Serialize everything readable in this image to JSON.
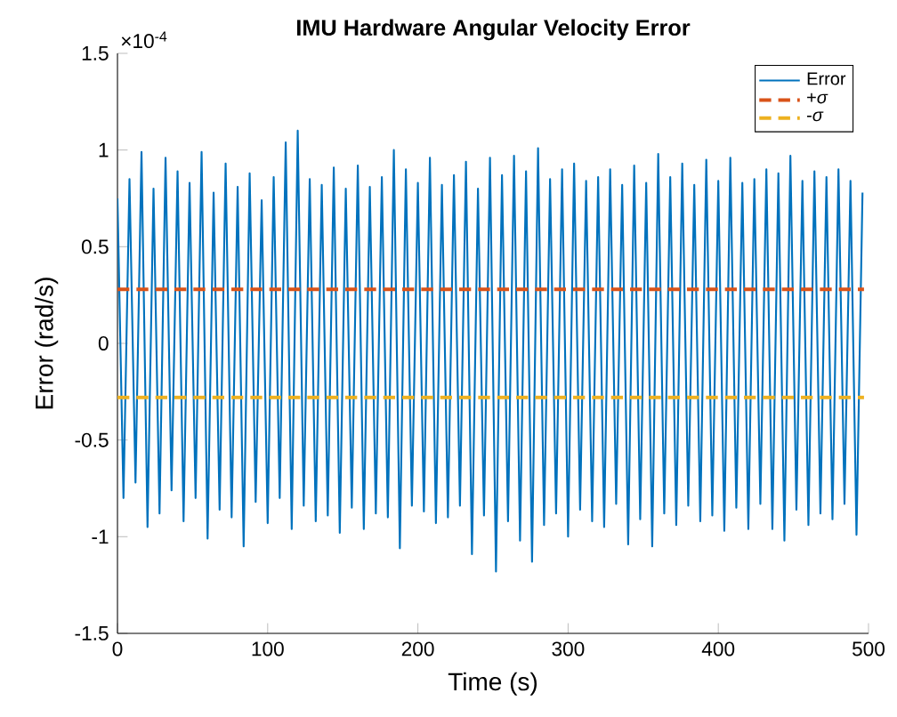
{
  "chart_data": {
    "type": "line",
    "title": "IMU Hardware Angular Velocity Error",
    "xlabel": "Time (s)",
    "ylabel": "Error (rad/s)",
    "annotations": [
      "×10$^{-4}$"
    ],
    "xlim": [
      0,
      500
    ],
    "xticks": [
      0,
      100,
      200,
      300,
      400,
      500
    ],
    "ylim": [
      -1.5,
      1.5
    ],
    "yticks": [
      -1.5,
      -1,
      -0.5,
      0,
      0.5,
      1,
      1.5
    ],
    "legend": "top right",
    "marker": "none",
    "series": [
      {
        "name": "Error",
        "color": "#0072bd",
        "line_style": "solid",
        "x": [
          0,
          4,
          8,
          12,
          16,
          20,
          24,
          28,
          32,
          36,
          40,
          44,
          48,
          52,
          56,
          60,
          64,
          68,
          72,
          76,
          80,
          84,
          88,
          92,
          96,
          100,
          104,
          108,
          112,
          116,
          120,
          124,
          128,
          132,
          136,
          140,
          144,
          148,
          152,
          156,
          160,
          164,
          168,
          172,
          176,
          180,
          184,
          188,
          192,
          196,
          200,
          204,
          208,
          212,
          216,
          220,
          224,
          228,
          232,
          236,
          240,
          244,
          248,
          252,
          256,
          260,
          264,
          268,
          272,
          276,
          280,
          284,
          288,
          292,
          296,
          300,
          304,
          308,
          312,
          316,
          320,
          324,
          328,
          332,
          336,
          340,
          344,
          348,
          352,
          356,
          360,
          364,
          368,
          372,
          376,
          380,
          384,
          388,
          392,
          396,
          400,
          404,
          408,
          412,
          416,
          420,
          424,
          428,
          432,
          436,
          440,
          444,
          448,
          452,
          456,
          460,
          464,
          468,
          472,
          476,
          480,
          484,
          488,
          492,
          496
        ],
        "values": [
          0.75,
          -0.8,
          0.85,
          -0.72,
          0.99,
          -0.95,
          0.8,
          -0.88,
          0.96,
          -0.76,
          0.89,
          -0.92,
          0.83,
          -0.8,
          0.99,
          -1.01,
          0.78,
          -0.86,
          0.93,
          -0.9,
          0.81,
          -1.05,
          0.88,
          -0.82,
          0.74,
          -0.93,
          0.86,
          -0.8,
          1.04,
          -0.96,
          1.1,
          -0.84,
          0.85,
          -0.92,
          0.82,
          -0.89,
          0.91,
          -0.98,
          0.8,
          -0.85,
          0.92,
          -0.96,
          0.81,
          -0.88,
          0.86,
          -0.9,
          1.0,
          -1.06,
          0.9,
          -0.84,
          0.83,
          -0.87,
          0.96,
          -0.93,
          0.82,
          -0.9,
          0.87,
          -0.84,
          0.94,
          -1.09,
          0.8,
          -0.89,
          0.96,
          -1.18,
          0.87,
          -0.92,
          0.97,
          -1.02,
          0.89,
          -1.13,
          1.01,
          -0.94,
          0.85,
          -0.88,
          0.9,
          -1.0,
          0.93,
          -0.86,
          0.84,
          -0.92,
          0.86,
          -0.95,
          0.9,
          -0.83,
          0.82,
          -1.04,
          0.92,
          -0.91,
          0.83,
          -1.05,
          0.98,
          -0.88,
          0.86,
          -0.94,
          0.93,
          -0.84,
          0.82,
          -0.92,
          0.95,
          -0.89,
          0.84,
          -0.97,
          0.96,
          -0.85,
          0.83,
          -0.96,
          0.85,
          -0.83,
          0.9,
          -0.96,
          0.88,
          -1.02,
          0.97,
          -0.86,
          0.84,
          -0.94,
          0.89,
          -0.88,
          0.86,
          -0.91,
          0.9,
          -0.83,
          0.84,
          -0.99,
          0.78
        ]
      },
      {
        "name": "+*σ*",
        "color": "#d95319",
        "line_style": "dashed",
        "x": [
          0,
          497
        ],
        "values": [
          0.28,
          0.28
        ]
      },
      {
        "name": "-*σ*",
        "color": "#edb120",
        "line_style": "dashed",
        "x": [
          0,
          497
        ],
        "values": [
          -0.28,
          -0.28
        ]
      }
    ]
  }
}
